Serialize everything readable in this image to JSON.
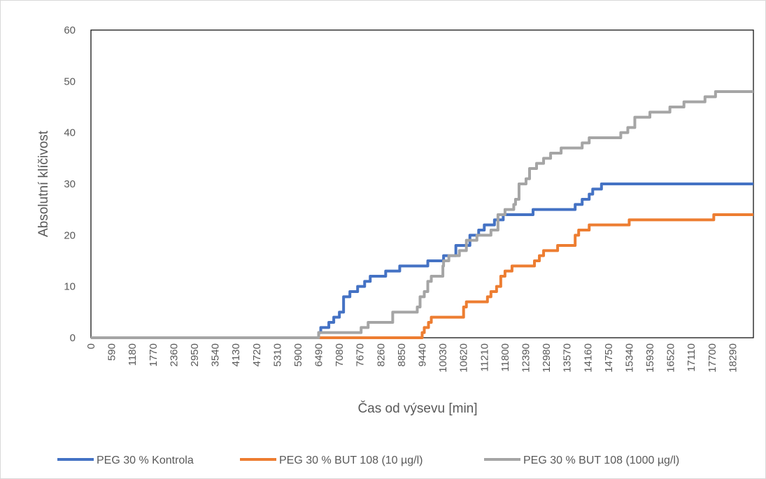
{
  "chart_data": {
    "type": "line",
    "title": "",
    "xlabel": "Čas od výsevu [min]",
    "ylabel": "Absolutní klíčivost",
    "xlim": [
      0,
      18880
    ],
    "ylim": [
      0,
      60
    ],
    "y_ticks": [
      "0",
      "10",
      "20",
      "30",
      "40",
      "50",
      "60"
    ],
    "x_ticks": [
      "0",
      "590",
      "1180",
      "1770",
      "2360",
      "2950",
      "3540",
      "4130",
      "4720",
      "5310",
      "5900",
      "6490",
      "7080",
      "7670",
      "8260",
      "8850",
      "9440",
      "10030",
      "10620",
      "11210",
      "11800",
      "12390",
      "12980",
      "13570",
      "14160",
      "14750",
      "15340",
      "15930",
      "16520",
      "17110",
      "17700",
      "18290"
    ],
    "grid": false,
    "legend_position": "bottom",
    "series": [
      {
        "name": "PEG 30 % Kontrola",
        "color": "#4472C4",
        "x": [
          0,
          6490,
          6550,
          6780,
          6920,
          7080,
          7200,
          7380,
          7450,
          7600,
          7800,
          7960,
          8100,
          8200,
          8400,
          8800,
          9600,
          10050,
          10400,
          10550,
          10800,
          11050,
          11210,
          11500,
          11750,
          12100,
          12600,
          13200,
          13800,
          14000,
          14200,
          14300,
          14550,
          18880
        ],
        "y": [
          0,
          1,
          2,
          3,
          4,
          5,
          8,
          9,
          9,
          10,
          11,
          12,
          12,
          12,
          13,
          14,
          15,
          16,
          18,
          18,
          20,
          21,
          22,
          23,
          24,
          24,
          25,
          25,
          26,
          27,
          28,
          29,
          30,
          30
        ]
      },
      {
        "name": "PEG 30 % BUT 108 (10 µg/l)",
        "color": "#ED7D31",
        "x": [
          0,
          6550,
          9380,
          9440,
          9500,
          9620,
          9700,
          10620,
          10700,
          11000,
          11300,
          11400,
          11560,
          11680,
          11800,
          11900,
          12000,
          12640,
          12780,
          12900,
          13000,
          13300,
          13800,
          13900,
          14100,
          14200,
          15340,
          17700,
          17750,
          18880
        ],
        "y": [
          0,
          0,
          0,
          1,
          2,
          3,
          4,
          6,
          7,
          7,
          8,
          9,
          10,
          12,
          13,
          13,
          14,
          15,
          16,
          17,
          17,
          18,
          20,
          21,
          21,
          22,
          23,
          23,
          24,
          24
        ]
      },
      {
        "name": "PEG 30 % BUT 108 (1000 µg/l)",
        "color": "#A5A5A5",
        "x": [
          0,
          6490,
          7600,
          7700,
          7900,
          8600,
          9300,
          9380,
          9500,
          9600,
          9700,
          9900,
          10030,
          10050,
          10200,
          10500,
          10700,
          11000,
          11400,
          11600,
          11800,
          12050,
          12100,
          12200,
          12400,
          12500,
          12700,
          12900,
          13100,
          13400,
          13700,
          14000,
          14200,
          14750,
          15100,
          15300,
          15500,
          15930,
          16500,
          16900,
          17500,
          17800,
          18880
        ],
        "y": [
          0,
          1,
          1,
          2,
          3,
          5,
          6,
          8,
          9,
          11,
          12,
          12,
          14,
          15,
          16,
          17,
          19,
          20,
          21,
          24,
          25,
          26,
          27,
          30,
          31,
          33,
          34,
          35,
          36,
          37,
          37,
          38,
          39,
          39,
          40,
          41,
          43,
          44,
          45,
          46,
          47,
          48,
          48
        ]
      }
    ]
  }
}
